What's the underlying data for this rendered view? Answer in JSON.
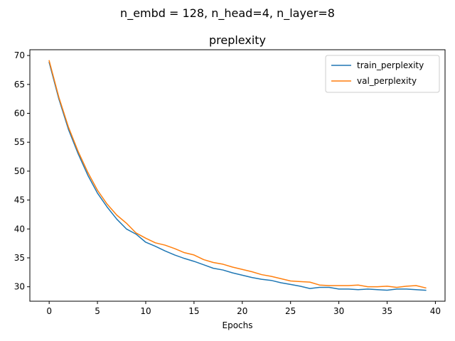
{
  "figure": {
    "suptitle": "n_embd = 128, n_head=4, n_layer=8"
  },
  "chart_data": {
    "type": "line",
    "title": "preplexity",
    "xlabel": "Epochs",
    "ylabel": "",
    "xlim": [
      -2,
      41
    ],
    "ylim": [
      27.5,
      71.0
    ],
    "xticks": [
      0,
      5,
      10,
      15,
      20,
      25,
      30,
      35,
      40
    ],
    "yticks": [
      30,
      35,
      40,
      45,
      50,
      55,
      60,
      65,
      70
    ],
    "grid": false,
    "legend_position": "top-right",
    "x": [
      0,
      1,
      2,
      3,
      4,
      5,
      6,
      7,
      8,
      9,
      10,
      11,
      12,
      13,
      14,
      15,
      16,
      17,
      18,
      19,
      20,
      21,
      22,
      23,
      24,
      25,
      26,
      27,
      28,
      29,
      30,
      31,
      32,
      33,
      34,
      35,
      36,
      37,
      38,
      39
    ],
    "series": [
      {
        "name": "train_perplexity",
        "color": "#1f77b4",
        "values": [
          68.8,
          62.5,
          57.2,
          53.0,
          49.3,
          46.2,
          43.8,
          41.7,
          40.0,
          39.1,
          37.7,
          37.0,
          36.2,
          35.5,
          34.9,
          34.4,
          33.8,
          33.2,
          32.9,
          32.4,
          32.0,
          31.6,
          31.3,
          31.1,
          30.7,
          30.4,
          30.1,
          29.7,
          29.9,
          29.9,
          29.6,
          29.6,
          29.5,
          29.6,
          29.5,
          29.4,
          29.6,
          29.6,
          29.5,
          29.4
        ]
      },
      {
        "name": "val_perplexity",
        "color": "#ff7f0e",
        "values": [
          69.1,
          62.8,
          57.6,
          53.4,
          49.8,
          46.7,
          44.3,
          42.4,
          41.0,
          39.3,
          38.4,
          37.6,
          37.2,
          36.6,
          35.9,
          35.5,
          34.7,
          34.2,
          33.9,
          33.4,
          33.0,
          32.6,
          32.1,
          31.8,
          31.4,
          31.0,
          30.9,
          30.8,
          30.3,
          30.2,
          30.2,
          30.2,
          30.3,
          30.0,
          30.0,
          30.1,
          29.9,
          30.1,
          30.2,
          29.8
        ]
      }
    ]
  }
}
